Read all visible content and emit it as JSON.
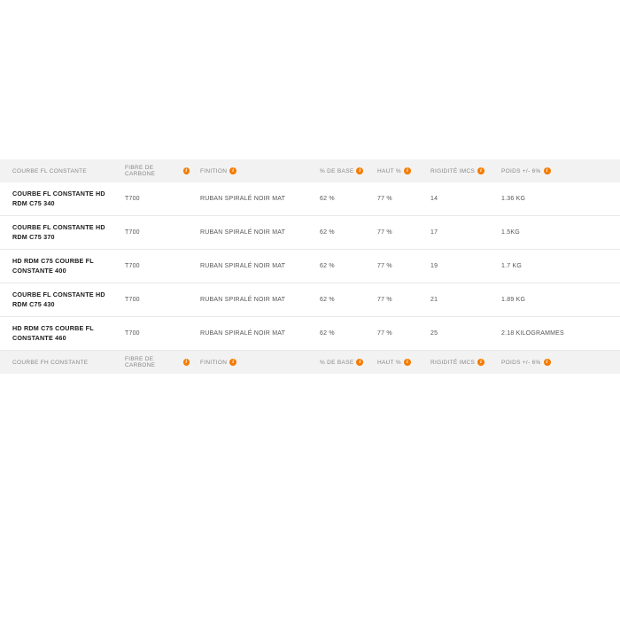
{
  "colors": {
    "header_bg": "#f2f2f2",
    "header_text": "#888888",
    "border": "#e8e8e8",
    "name_text": "#1a1a1a",
    "data_text": "#555555",
    "info_icon": "#f57c00",
    "background": "#ffffff"
  },
  "section1": {
    "header": {
      "name": "COURBE FL CONSTANTE",
      "fiber": "FIBRE DE CARBONE",
      "finition": "FINITION",
      "base": "% DE BASE",
      "haut": "HAUT %",
      "rigidite": "RIGIDITÉ IMCS",
      "poids": "POIDS +/- 6%"
    },
    "rows": [
      {
        "name": "COURBE FL CONSTANTE HD RDM C75 340",
        "fiber": "T700",
        "finition": "RUBAN SPIRALÉ NOIR MAT",
        "base": "62 %",
        "haut": "77 %",
        "rig": "14",
        "poids": "1.36 KG"
      },
      {
        "name": "COURBE FL CONSTANTE HD RDM C75 370",
        "fiber": "T700",
        "finition": "RUBAN SPIRALÉ NOIR MAT",
        "base": "62 %",
        "haut": "77 %",
        "rig": "17",
        "poids": "1.5KG"
      },
      {
        "name": "HD RDM C75 COURBE FL CONSTANTE 400",
        "fiber": "T700",
        "finition": "RUBAN SPIRALÉ NOIR MAT",
        "base": "62 %",
        "haut": "77 %",
        "rig": "19",
        "poids": "1.7 KG"
      },
      {
        "name": "COURBE FL CONSTANTE HD RDM C75 430",
        "fiber": "T700",
        "finition": "RUBAN SPIRALÉ NOIR MAT",
        "base": "62 %",
        "haut": "77 %",
        "rig": "21",
        "poids": "1.89 KG"
      },
      {
        "name": "HD RDM C75 COURBE FL CONSTANTE 460",
        "fiber": "T700",
        "finition": "RUBAN SPIRALÉ NOIR MAT",
        "base": "62 %",
        "haut": "77 %",
        "rig": "25",
        "poids": "2.18 KILOGRAMMES"
      }
    ]
  },
  "section2": {
    "header": {
      "name": "COURBE FH CONSTANTE",
      "fiber": "FIBRE DE CARBONE",
      "finition": "FINITION",
      "base": "% DE BASE",
      "haut": "HAUT %",
      "rigidite": "RIGIDITÉ IMCS",
      "poids": "POIDS +/- 6%"
    }
  }
}
